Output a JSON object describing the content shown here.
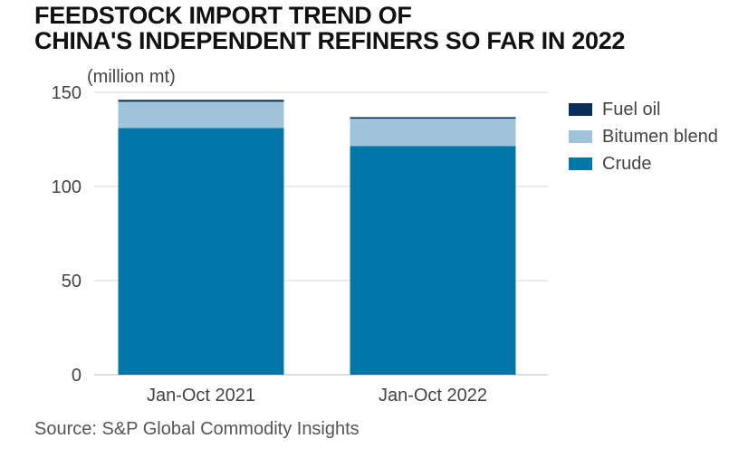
{
  "title_lines": [
    "FEEDSTOCK IMPORT TREND OF",
    "CHINA'S INDEPENDENT REFINERS SO FAR IN 2022"
  ],
  "source": "Source: S&P Global Commodity Insights",
  "chart_data": {
    "type": "bar",
    "stacked": true,
    "unit_label": "(million mt)",
    "categories": [
      "Jan-Oct 2021",
      "Jan-Oct 2022"
    ],
    "series": [
      {
        "name": "Crude",
        "values": [
          131,
          121.5
        ],
        "color": "#0077a8"
      },
      {
        "name": "Bitumen blend",
        "values": [
          14,
          14.5
        ],
        "color": "#9fc3da"
      },
      {
        "name": "Fuel oil",
        "values": [
          1,
          0.8
        ],
        "color": "#0b2f5b"
      }
    ],
    "ylim": [
      0,
      150
    ],
    "yticks": [
      0,
      50,
      100,
      150
    ],
    "grid": true,
    "legend_position": "right"
  }
}
